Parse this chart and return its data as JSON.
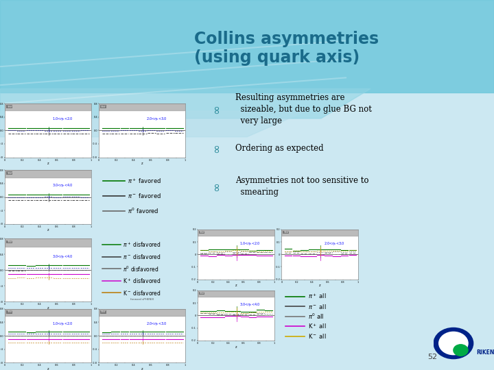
{
  "title_line1": "Collins asymmetries",
  "title_line2": "(using quark axis)",
  "title_color": "#1a6b8a",
  "bg_color": "#cce8f0",
  "bg_top_color": "#7ecfde",
  "bullets": [
    "Resulting asymmetries are\n  sizeable, but due to glue BG not\n  very large",
    "Ordering as expected",
    "Asymmetries not too sensitive to\n  smearing"
  ],
  "page_number": "52"
}
